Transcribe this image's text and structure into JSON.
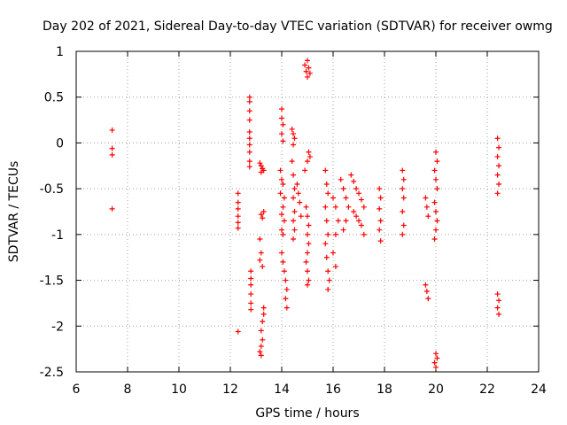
{
  "chart_data": {
    "type": "scatter",
    "title": "Day 202 of 2021, Sidereal Day-to-day VTEC variation (SDTVAR) for receiver owmg",
    "xlabel": "GPS time / hours",
    "ylabel": "SDTVAR / TECUs",
    "xlim": [
      6,
      24
    ],
    "ylim": [
      -2.5,
      1
    ],
    "xticks": [
      6,
      8,
      10,
      12,
      14,
      16,
      18,
      20,
      22,
      24
    ],
    "yticks": [
      -2.5,
      -2,
      -1.5,
      -1,
      -0.5,
      0,
      0.5,
      1
    ],
    "ytick_labels": [
      "-2.5",
      "-2",
      "-1.5",
      "-1",
      "-0.5",
      "0",
      "0.5",
      "1"
    ],
    "grid": true,
    "marker": "plus",
    "marker_color": "#ff0000",
    "series": [
      {
        "name": "SDTVAR",
        "points": [
          [
            7.4,
            0.14
          ],
          [
            7.4,
            -0.06
          ],
          [
            7.4,
            -0.13
          ],
          [
            7.4,
            -0.72
          ],
          [
            12.3,
            -0.55
          ],
          [
            12.3,
            -0.65
          ],
          [
            12.3,
            -0.72
          ],
          [
            12.3,
            -0.8
          ],
          [
            12.3,
            -0.87
          ],
          [
            12.3,
            -0.93
          ],
          [
            12.3,
            -2.06
          ],
          [
            12.75,
            0.5
          ],
          [
            12.75,
            0.45
          ],
          [
            12.75,
            0.35
          ],
          [
            12.75,
            0.25
          ],
          [
            12.75,
            0.12
          ],
          [
            12.75,
            0.05
          ],
          [
            12.75,
            -0.02
          ],
          [
            12.75,
            -0.1
          ],
          [
            12.75,
            -0.2
          ],
          [
            12.75,
            -0.26
          ],
          [
            12.8,
            -1.4
          ],
          [
            12.8,
            -1.48
          ],
          [
            12.8,
            -1.55
          ],
          [
            12.8,
            -1.65
          ],
          [
            12.8,
            -1.75
          ],
          [
            12.8,
            -1.82
          ],
          [
            13.15,
            -0.22
          ],
          [
            13.2,
            -0.25
          ],
          [
            13.25,
            -0.28
          ],
          [
            13.2,
            -0.32
          ],
          [
            13.3,
            -0.3
          ],
          [
            13.2,
            -0.78
          ],
          [
            13.25,
            -0.82
          ],
          [
            13.3,
            -0.75
          ],
          [
            13.15,
            -1.05
          ],
          [
            13.2,
            -1.2
          ],
          [
            13.15,
            -1.28
          ],
          [
            13.25,
            -1.35
          ],
          [
            13.2,
            -2.05
          ],
          [
            13.25,
            -2.15
          ],
          [
            13.2,
            -2.22
          ],
          [
            13.15,
            -2.28
          ],
          [
            13.2,
            -2.32
          ],
          [
            13.3,
            -1.8
          ],
          [
            13.3,
            -1.87
          ],
          [
            13.25,
            -1.95
          ],
          [
            14.0,
            0.37
          ],
          [
            14.0,
            0.27
          ],
          [
            14.05,
            0.2
          ],
          [
            14.0,
            0.1
          ],
          [
            14.05,
            0.02
          ],
          [
            13.95,
            -0.3
          ],
          [
            14.0,
            -0.4
          ],
          [
            14.05,
            -0.45
          ],
          [
            13.95,
            -0.55
          ],
          [
            14.1,
            -0.6
          ],
          [
            14.05,
            -0.7
          ],
          [
            14.0,
            -0.78
          ],
          [
            14.1,
            -0.85
          ],
          [
            14.0,
            -0.95
          ],
          [
            14.05,
            -1.0
          ],
          [
            14.0,
            -1.2
          ],
          [
            14.05,
            -1.3
          ],
          [
            14.1,
            -1.4
          ],
          [
            14.15,
            -1.5
          ],
          [
            14.2,
            -1.6
          ],
          [
            14.15,
            -1.7
          ],
          [
            14.2,
            -1.8
          ],
          [
            14.4,
            0.15
          ],
          [
            14.45,
            0.1
          ],
          [
            14.5,
            0.05
          ],
          [
            14.45,
            -0.02
          ],
          [
            14.4,
            -0.2
          ],
          [
            14.45,
            -0.35
          ],
          [
            14.5,
            -0.5
          ],
          [
            14.45,
            -0.6
          ],
          [
            14.5,
            -0.75
          ],
          [
            14.45,
            -0.85
          ],
          [
            14.5,
            -0.95
          ],
          [
            14.45,
            -1.05
          ],
          [
            14.6,
            -0.45
          ],
          [
            14.65,
            -0.55
          ],
          [
            14.7,
            -0.65
          ],
          [
            14.75,
            -0.8
          ],
          [
            14.9,
            0.85
          ],
          [
            14.95,
            0.78
          ],
          [
            15.0,
            0.9
          ],
          [
            15.05,
            0.82
          ],
          [
            15.1,
            0.76
          ],
          [
            15.0,
            0.72
          ],
          [
            14.9,
            -0.3
          ],
          [
            15.0,
            -0.2
          ],
          [
            15.05,
            -0.1
          ],
          [
            15.1,
            -0.15
          ],
          [
            14.95,
            -0.7
          ],
          [
            15.0,
            -0.8
          ],
          [
            15.05,
            -0.9
          ],
          [
            15.0,
            -1.0
          ],
          [
            15.05,
            -1.1
          ],
          [
            15.0,
            -1.2
          ],
          [
            14.95,
            -1.3
          ],
          [
            15.0,
            -1.4
          ],
          [
            15.05,
            -1.5
          ],
          [
            15.0,
            -1.55
          ],
          [
            15.7,
            -0.3
          ],
          [
            15.75,
            -0.45
          ],
          [
            15.8,
            -0.55
          ],
          [
            15.7,
            -0.7
          ],
          [
            15.75,
            -0.85
          ],
          [
            15.8,
            -1.0
          ],
          [
            15.7,
            -1.1
          ],
          [
            15.75,
            -1.25
          ],
          [
            15.8,
            -1.4
          ],
          [
            15.85,
            -1.5
          ],
          [
            15.8,
            -1.6
          ],
          [
            16.0,
            -0.6
          ],
          [
            16.1,
            -0.7
          ],
          [
            16.2,
            -0.85
          ],
          [
            16.1,
            -1.0
          ],
          [
            16.0,
            -1.2
          ],
          [
            16.1,
            -1.35
          ],
          [
            16.3,
            -0.4
          ],
          [
            16.4,
            -0.5
          ],
          [
            16.5,
            -0.6
          ],
          [
            16.6,
            -0.7
          ],
          [
            16.5,
            -0.85
          ],
          [
            16.4,
            -0.95
          ],
          [
            16.7,
            -0.35
          ],
          [
            16.8,
            -0.42
          ],
          [
            16.9,
            -0.5
          ],
          [
            17.0,
            -0.55
          ],
          [
            17.1,
            -0.62
          ],
          [
            17.2,
            -0.7
          ],
          [
            16.8,
            -0.75
          ],
          [
            16.9,
            -0.8
          ],
          [
            17.0,
            -0.85
          ],
          [
            17.1,
            -0.9
          ],
          [
            17.2,
            -1.0
          ],
          [
            17.8,
            -0.5
          ],
          [
            17.85,
            -0.6
          ],
          [
            17.8,
            -0.72
          ],
          [
            17.85,
            -0.85
          ],
          [
            17.8,
            -0.95
          ],
          [
            17.85,
            -1.07
          ],
          [
            18.7,
            -0.3
          ],
          [
            18.75,
            -0.4
          ],
          [
            18.7,
            -0.5
          ],
          [
            18.75,
            -0.6
          ],
          [
            18.7,
            -0.75
          ],
          [
            18.75,
            -0.9
          ],
          [
            18.7,
            -1.0
          ],
          [
            19.6,
            -0.6
          ],
          [
            19.65,
            -0.7
          ],
          [
            19.7,
            -0.8
          ],
          [
            19.6,
            -1.55
          ],
          [
            19.65,
            -1.62
          ],
          [
            19.7,
            -1.7
          ],
          [
            20.0,
            -0.1
          ],
          [
            20.05,
            -0.2
          ],
          [
            19.95,
            -0.3
          ],
          [
            20.0,
            -0.4
          ],
          [
            20.05,
            -0.5
          ],
          [
            19.95,
            -0.65
          ],
          [
            20.0,
            -0.75
          ],
          [
            20.05,
            -0.85
          ],
          [
            20.0,
            -0.95
          ],
          [
            19.95,
            -1.05
          ],
          [
            20.0,
            -2.3
          ],
          [
            20.05,
            -2.35
          ],
          [
            19.95,
            -2.4
          ],
          [
            20.0,
            -2.45
          ],
          [
            22.4,
            0.05
          ],
          [
            22.45,
            -0.05
          ],
          [
            22.4,
            -0.15
          ],
          [
            22.45,
            -0.25
          ],
          [
            22.4,
            -0.35
          ],
          [
            22.45,
            -0.45
          ],
          [
            22.4,
            -0.55
          ],
          [
            22.4,
            -1.65
          ],
          [
            22.45,
            -1.72
          ],
          [
            22.4,
            -1.8
          ],
          [
            22.45,
            -1.87
          ]
        ]
      }
    ]
  }
}
